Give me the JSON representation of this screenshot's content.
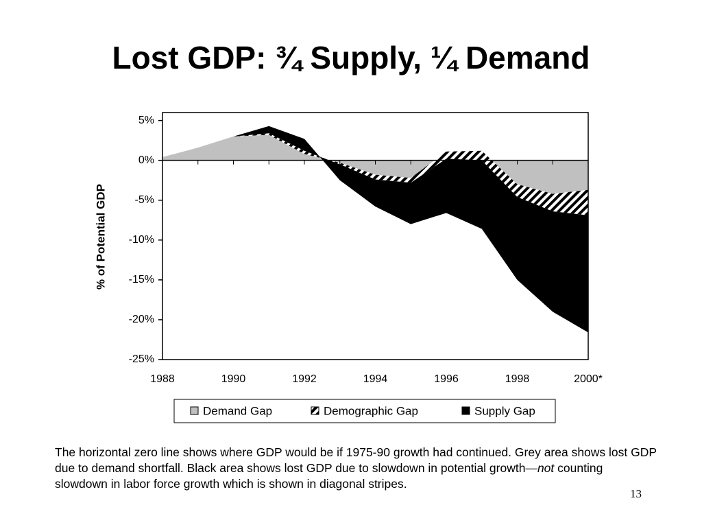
{
  "chart_data": {
    "type": "area",
    "title": "Lost GDP: ¾ Supply, ¼ Demand",
    "y_label": "% of Potential GDP",
    "categories": [
      "1988",
      null,
      "1990",
      null,
      "1992",
      null,
      "1994",
      null,
      "1996",
      null,
      "1998",
      null,
      "2000*"
    ],
    "series": [
      {
        "name": "Demand Gap",
        "color": "#c0c0c0",
        "values": [
          0.4,
          1.6,
          3.0,
          3.2,
          0.8,
          -0.3,
          -1.8,
          -2.2,
          1.1,
          1.2,
          -3.0,
          -4.2,
          -3.7
        ]
      },
      {
        "name": "Demographic Gap",
        "color": "#ffffff",
        "pattern": "diagonal-stripes",
        "values": [
          0,
          0,
          0,
          0.2,
          0.4,
          -0.2,
          -0.6,
          -0.6,
          -0.9,
          -1.2,
          -1.6,
          -2.2,
          -3.2
        ]
      },
      {
        "name": "Supply Gap",
        "color": "#000000",
        "values": [
          0,
          0,
          0,
          0.9,
          1.5,
          -2.0,
          -3.4,
          -5.2,
          -6.8,
          -8.6,
          -10.4,
          -12.6,
          -14.7
        ]
      }
    ],
    "stacked": true,
    "ylim": [
      -25,
      6
    ],
    "yticks": [
      {
        "value": 5,
        "label": "5%"
      },
      {
        "value": 0,
        "label": "0%"
      },
      {
        "value": -5,
        "label": "-5%"
      },
      {
        "value": -10,
        "label": "-10%"
      },
      {
        "value": -15,
        "label": "-15%"
      },
      {
        "value": -20,
        "label": "-20%"
      },
      {
        "value": -25,
        "label": "-25%"
      }
    ],
    "legend": "bottom"
  },
  "note": [
    "The horizontal zero line shows where GDP would be if 1975-90 growth had continued. Grey area shows lost GDP due to demand shortfall. Black area shows lost GDP due to slowdown in potential growth—",
    "not",
    " counting slowdown in labor force growth which is shown in diagonal stripes."
  ],
  "page_number": "13"
}
